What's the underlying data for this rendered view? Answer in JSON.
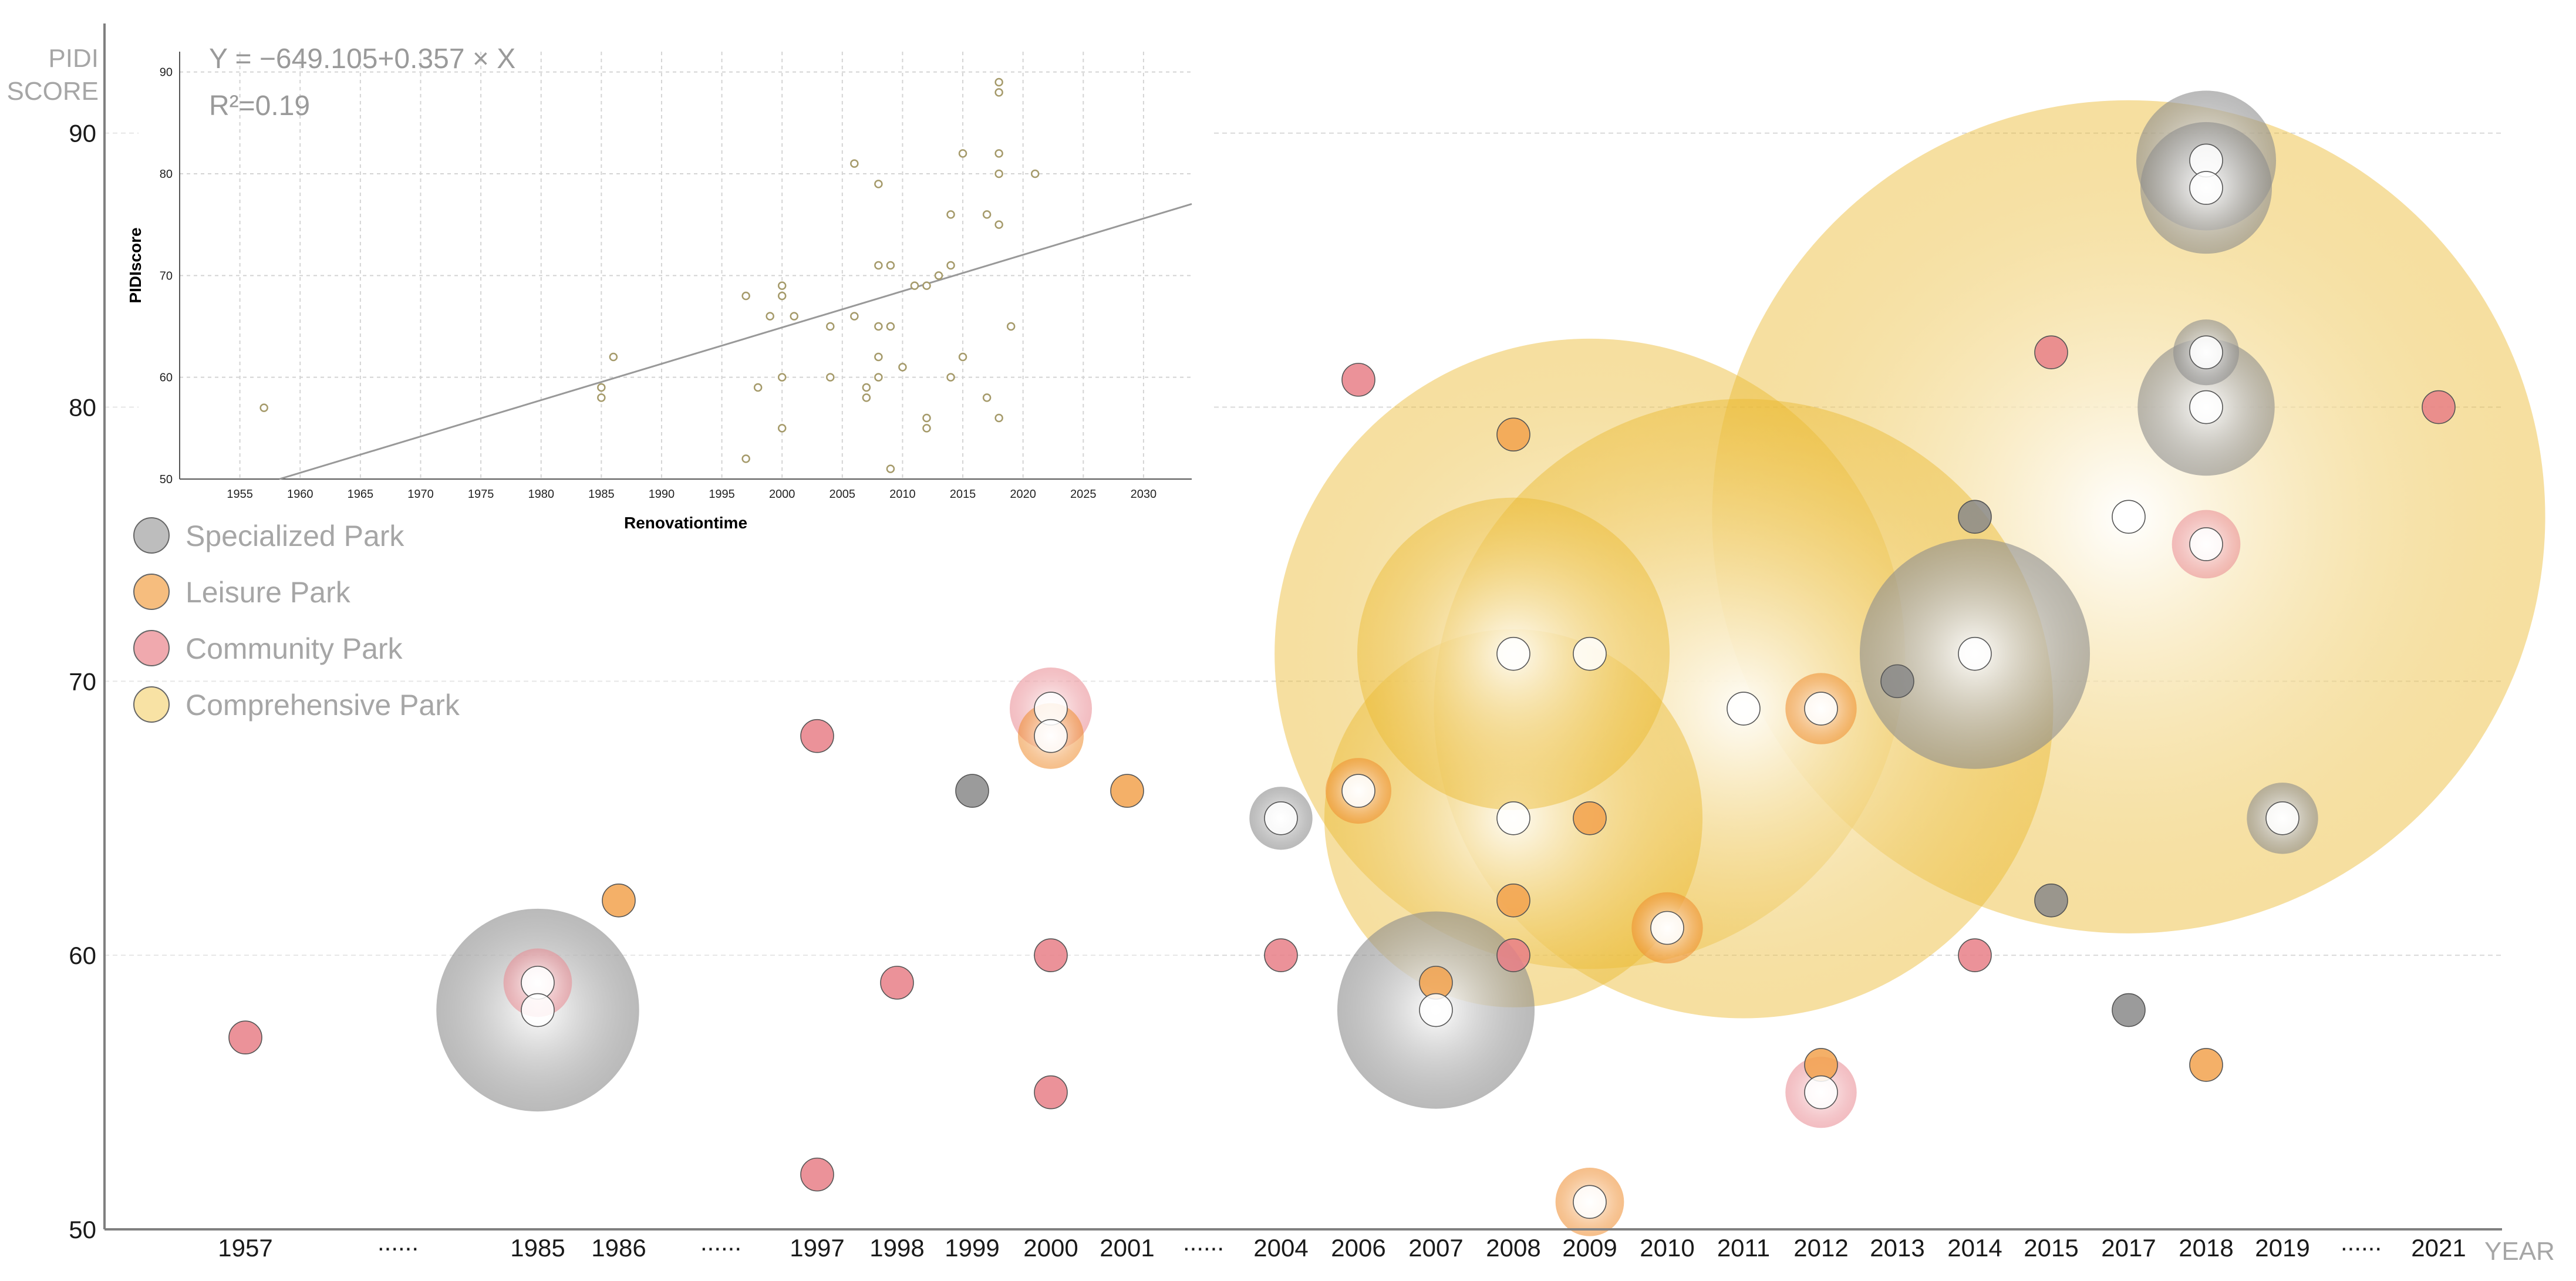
{
  "colors": {
    "specialized": "#8c8c8c",
    "leisure": "#f0a44f",
    "community": "#e8878f",
    "comprehensive": "#f3d98a",
    "grid": "#d9d9d9",
    "axis": "#7f7f7f",
    "text_light": "#a6a6a6"
  },
  "chart_data": [
    {
      "type": "scatter",
      "name": "main-bubble-chart",
      "ylabel_lines": [
        "PIDI",
        "SCORE"
      ],
      "xlabel": "YEAR",
      "ylim": [
        50,
        94
      ],
      "yticks": [
        50,
        60,
        70,
        80,
        90
      ],
      "categories": [
        "1957",
        "......",
        "1985",
        "1986",
        "......",
        "1997",
        "1998",
        "1999",
        "2000",
        "2001",
        "......",
        "2004",
        "2006",
        "2007",
        "2008",
        "2009",
        "2010",
        "2011",
        "2012",
        "2013",
        "2014",
        "2015",
        "2017",
        "2018",
        "2019",
        "......",
        "2021"
      ],
      "legend": [
        {
          "key": "specialized",
          "label": "Specialized Park"
        },
        {
          "key": "leisure",
          "label": "Leisure Park"
        },
        {
          "key": "community",
          "label": "Community Park"
        },
        {
          "key": "comprehensive",
          "label": "Comprehensive Park"
        }
      ],
      "halos": [
        {
          "year": "1985",
          "y": 58,
          "type": "specialized",
          "size": 3.7
        },
        {
          "year": "1985",
          "y": 59,
          "type": "community",
          "size": 1.25
        },
        {
          "year": "2000",
          "y": 69,
          "type": "community",
          "size": 1.5
        },
        {
          "year": "2000",
          "y": 68,
          "type": "leisure",
          "size": 1.2
        },
        {
          "year": "2004",
          "y": 65,
          "type": "specialized",
          "size": 1.15
        },
        {
          "year": "2006",
          "y": 66,
          "type": "leisure",
          "size": 1.2
        },
        {
          "year": "2007",
          "y": 58,
          "type": "specialized",
          "size": 3.6
        },
        {
          "year": "2009",
          "y": 71,
          "type": "comprehensive",
          "size": 11.5
        },
        {
          "year": "2008",
          "y": 71,
          "type": "comprehensive",
          "size": 5.7
        },
        {
          "year": "2008",
          "y": 65,
          "type": "comprehensive",
          "size": 6.9
        },
        {
          "year": "2011",
          "y": 69,
          "type": "comprehensive",
          "size": 11.3
        },
        {
          "year": "2017",
          "y": 76,
          "type": "comprehensive",
          "size": 15.2
        },
        {
          "year": "2009",
          "y": 51,
          "type": "leisure",
          "size": 1.25
        },
        {
          "year": "2010",
          "y": 61,
          "type": "leisure",
          "size": 1.3
        },
        {
          "year": "2012",
          "y": 69,
          "type": "leisure",
          "size": 1.3
        },
        {
          "year": "2012",
          "y": 55,
          "type": "community",
          "size": 1.3
        },
        {
          "year": "2014",
          "y": 71,
          "type": "specialized",
          "size": 4.2
        },
        {
          "year": "2018",
          "y": 89,
          "type": "specialized",
          "size": 2.55
        },
        {
          "year": "2018",
          "y": 88,
          "type": "specialized",
          "size": 2.4
        },
        {
          "year": "2018",
          "y": 82,
          "type": "specialized",
          "size": 1.2
        },
        {
          "year": "2018",
          "y": 80,
          "type": "specialized",
          "size": 2.5
        },
        {
          "year": "2018",
          "y": 75,
          "type": "community",
          "size": 1.25
        },
        {
          "year": "2019",
          "y": 65,
          "type": "specialized",
          "size": 1.3
        }
      ],
      "points": [
        {
          "year": "1957",
          "y": 57,
          "type": "community"
        },
        {
          "year": "1985",
          "y": 59,
          "type": "white"
        },
        {
          "year": "1985",
          "y": 58,
          "type": "white"
        },
        {
          "year": "1986",
          "y": 62,
          "type": "leisure"
        },
        {
          "year": "1997",
          "y": 68,
          "type": "community"
        },
        {
          "year": "1997",
          "y": 52,
          "type": "community"
        },
        {
          "year": "1998",
          "y": 59,
          "type": "community"
        },
        {
          "year": "1999",
          "y": 66,
          "type": "specialized"
        },
        {
          "year": "2000",
          "y": 69,
          "type": "white"
        },
        {
          "year": "2000",
          "y": 68,
          "type": "white"
        },
        {
          "year": "2000",
          "y": 60,
          "type": "community"
        },
        {
          "year": "2000",
          "y": 55,
          "type": "community"
        },
        {
          "year": "2001",
          "y": 66,
          "type": "leisure"
        },
        {
          "year": "2004",
          "y": 65,
          "type": "white"
        },
        {
          "year": "2004",
          "y": 60,
          "type": "community"
        },
        {
          "year": "2006",
          "y": 81,
          "type": "community"
        },
        {
          "year": "2006",
          "y": 66,
          "type": "white"
        },
        {
          "year": "2007",
          "y": 59,
          "type": "leisure"
        },
        {
          "year": "2007",
          "y": 58,
          "type": "white"
        },
        {
          "year": "2008",
          "y": 79,
          "type": "leisure"
        },
        {
          "year": "2008",
          "y": 71,
          "type": "white"
        },
        {
          "year": "2008",
          "y": 65,
          "type": "white"
        },
        {
          "year": "2008",
          "y": 62,
          "type": "leisure"
        },
        {
          "year": "2008",
          "y": 60,
          "type": "community"
        },
        {
          "year": "2009",
          "y": 71,
          "type": "white"
        },
        {
          "year": "2009",
          "y": 65,
          "type": "leisure"
        },
        {
          "year": "2009",
          "y": 51,
          "type": "white"
        },
        {
          "year": "2010",
          "y": 61,
          "type": "white"
        },
        {
          "year": "2011",
          "y": 69,
          "type": "white"
        },
        {
          "year": "2012",
          "y": 69,
          "type": "white"
        },
        {
          "year": "2012",
          "y": 56,
          "type": "leisure"
        },
        {
          "year": "2012",
          "y": 55,
          "type": "white"
        },
        {
          "year": "2013",
          "y": 70,
          "type": "specialized"
        },
        {
          "year": "2014",
          "y": 76,
          "type": "specialized"
        },
        {
          "year": "2014",
          "y": 71,
          "type": "white"
        },
        {
          "year": "2014",
          "y": 60,
          "type": "community"
        },
        {
          "year": "2015",
          "y": 82,
          "type": "community"
        },
        {
          "year": "2015",
          "y": 62,
          "type": "specialized"
        },
        {
          "year": "2017",
          "y": 76,
          "type": "white"
        },
        {
          "year": "2017",
          "y": 58,
          "type": "specialized"
        },
        {
          "year": "2018",
          "y": 89,
          "type": "white"
        },
        {
          "year": "2018",
          "y": 88,
          "type": "white"
        },
        {
          "year": "2018",
          "y": 82,
          "type": "white"
        },
        {
          "year": "2018",
          "y": 80,
          "type": "white"
        },
        {
          "year": "2018",
          "y": 75,
          "type": "white"
        },
        {
          "year": "2018",
          "y": 56,
          "type": "leisure"
        },
        {
          "year": "2019",
          "y": 65,
          "type": "white"
        },
        {
          "year": "2021",
          "y": 80,
          "type": "community"
        }
      ]
    },
    {
      "type": "scatter",
      "name": "inset-regression",
      "xlabel": "Renovationtime",
      "ylabel": "PIDIscore",
      "xlim": [
        1950,
        2034
      ],
      "ylim": [
        50,
        92
      ],
      "xticks": [
        1955,
        1960,
        1965,
        1970,
        1975,
        1980,
        1985,
        1990,
        1995,
        2000,
        2005,
        2010,
        2015,
        2020,
        2025,
        2030
      ],
      "yticks": [
        50,
        60,
        70,
        80,
        90
      ],
      "equation": "Y = −649.105+0.357 × X",
      "r_squared": "R²=0.19",
      "regression": {
        "intercept": -649.105,
        "slope": 0.357
      },
      "points": [
        [
          1957,
          57
        ],
        [
          1985,
          59
        ],
        [
          1985,
          58
        ],
        [
          1986,
          62
        ],
        [
          1997,
          68
        ],
        [
          1997,
          52
        ],
        [
          1998,
          59
        ],
        [
          1999,
          66
        ],
        [
          2000,
          69
        ],
        [
          2000,
          68
        ],
        [
          2000,
          60
        ],
        [
          2000,
          55
        ],
        [
          2001,
          66
        ],
        [
          2004,
          65
        ],
        [
          2004,
          60
        ],
        [
          2006,
          81
        ],
        [
          2006,
          66
        ],
        [
          2007,
          59
        ],
        [
          2007,
          58
        ],
        [
          2008,
          79
        ],
        [
          2008,
          71
        ],
        [
          2008,
          65
        ],
        [
          2008,
          62
        ],
        [
          2008,
          60
        ],
        [
          2009,
          71
        ],
        [
          2009,
          65
        ],
        [
          2009,
          51
        ],
        [
          2010,
          61
        ],
        [
          2011,
          69
        ],
        [
          2012,
          69
        ],
        [
          2012,
          56
        ],
        [
          2012,
          55
        ],
        [
          2013,
          70
        ],
        [
          2014,
          76
        ],
        [
          2014,
          71
        ],
        [
          2014,
          60
        ],
        [
          2015,
          82
        ],
        [
          2015,
          62
        ],
        [
          2017,
          76
        ],
        [
          2017,
          58
        ],
        [
          2018,
          89
        ],
        [
          2018,
          88
        ],
        [
          2018,
          82
        ],
        [
          2018,
          80
        ],
        [
          2018,
          75
        ],
        [
          2018,
          56
        ],
        [
          2019,
          65
        ],
        [
          2021,
          80
        ]
      ]
    }
  ]
}
